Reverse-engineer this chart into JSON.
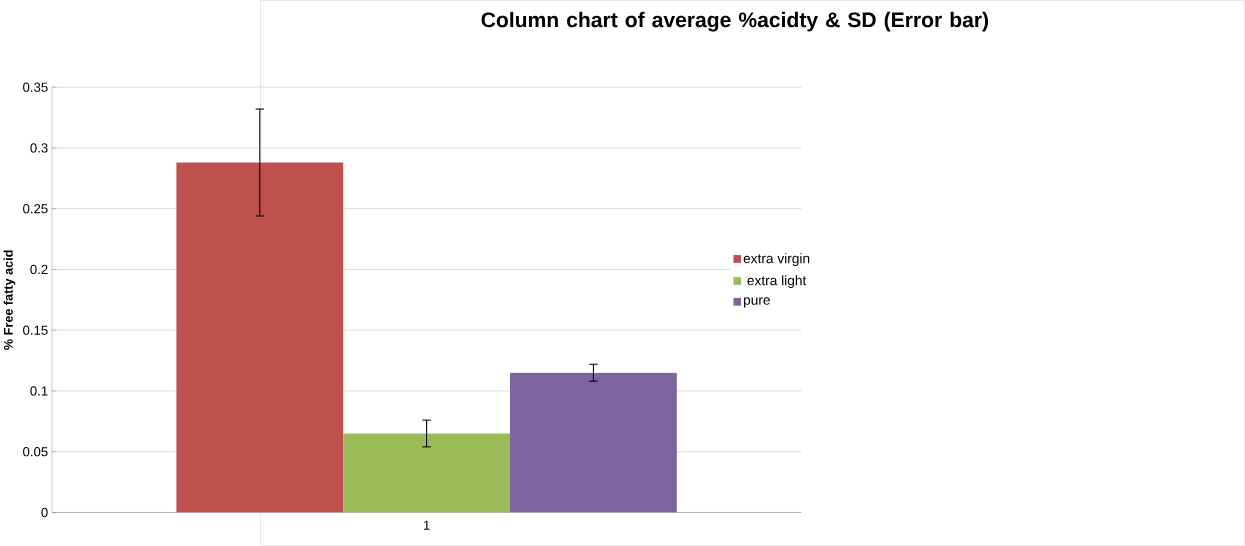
{
  "chart_data": {
    "type": "bar",
    "title": "Column chart of average %acidty & SD (Error bar)",
    "ylabel": "% Free fatty acid",
    "categories": [
      "1"
    ],
    "series": [
      {
        "name": "extra virgin",
        "color": "#c0504d",
        "values": [
          0.288
        ],
        "errors": [
          0.044
        ]
      },
      {
        "name": " extra light",
        "color": "#9bbb59",
        "values": [
          0.065
        ],
        "errors": [
          0.011
        ]
      },
      {
        "name": "pure",
        "color": "#8064a2",
        "values": [
          0.115
        ],
        "errors": [
          0.007
        ]
      }
    ],
    "ylim": [
      0,
      0.35
    ],
    "yticks": [
      0,
      0.05,
      0.1,
      0.15,
      0.2,
      0.25,
      0.3,
      0.35
    ],
    "grid": "y",
    "legend": "right"
  }
}
